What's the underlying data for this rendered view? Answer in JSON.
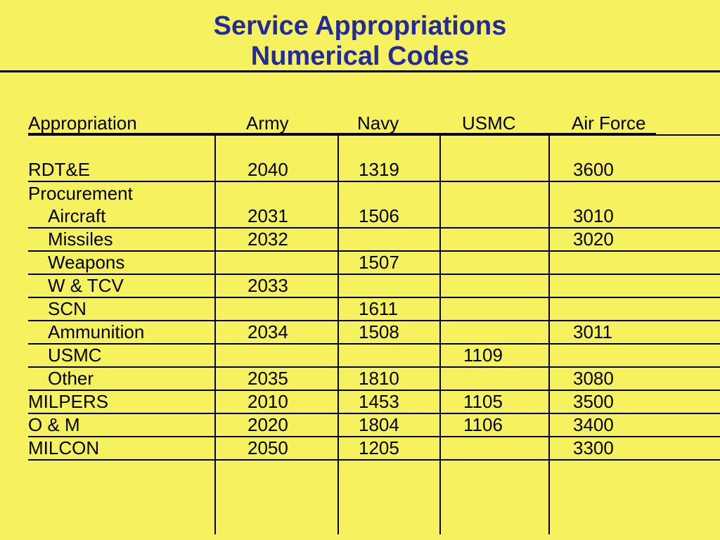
{
  "slide": {
    "title_line1": "Service Appropriations",
    "title_line2": "Numerical Codes"
  },
  "colors": {
    "background": "#F6F25F",
    "title_text": "#232A9C",
    "table_text": "#000000",
    "lines": "#000000"
  },
  "table": {
    "headers": [
      "Appropriation",
      "Army",
      "Navy",
      "USMC",
      "Air Force"
    ],
    "rows": [
      {
        "label": "RDT&E",
        "indent": false,
        "underline": true,
        "values": [
          "2040",
          "1319",
          "",
          "3600"
        ]
      },
      {
        "label": "Procurement",
        "indent": false,
        "underline": false,
        "values": [
          "",
          "",
          "",
          ""
        ]
      },
      {
        "label": "Aircraft",
        "indent": true,
        "underline": true,
        "values": [
          "2031",
          "1506",
          "",
          "3010"
        ]
      },
      {
        "label": "Missiles",
        "indent": true,
        "underline": true,
        "values": [
          "2032",
          "",
          "",
          "3020"
        ]
      },
      {
        "label": "Weapons",
        "indent": true,
        "underline": true,
        "values": [
          "",
          "1507",
          "",
          ""
        ]
      },
      {
        "label": "W & TCV",
        "indent": true,
        "underline": true,
        "values": [
          "2033",
          "",
          "",
          ""
        ]
      },
      {
        "label": "SCN",
        "indent": true,
        "underline": true,
        "values": [
          "",
          "1611",
          "",
          ""
        ]
      },
      {
        "label": "Ammunition",
        "indent": true,
        "underline": true,
        "values": [
          "2034",
          "1508",
          "",
          "3011"
        ]
      },
      {
        "label": "USMC",
        "indent": true,
        "underline": true,
        "values": [
          "",
          "",
          "1109",
          ""
        ]
      },
      {
        "label": "Other",
        "indent": true,
        "underline": true,
        "values": [
          "2035",
          "1810",
          "",
          "3080"
        ]
      },
      {
        "label": "MILPERS",
        "indent": false,
        "underline": true,
        "values": [
          "2010",
          "1453",
          "1105",
          "3500"
        ]
      },
      {
        "label": "O & M",
        "indent": false,
        "underline": true,
        "values": [
          "2020",
          "1804",
          "1106",
          "3400"
        ]
      },
      {
        "label": "MILCON",
        "indent": false,
        "underline": true,
        "values": [
          "2050",
          "1205",
          "",
          "3300"
        ]
      }
    ]
  }
}
